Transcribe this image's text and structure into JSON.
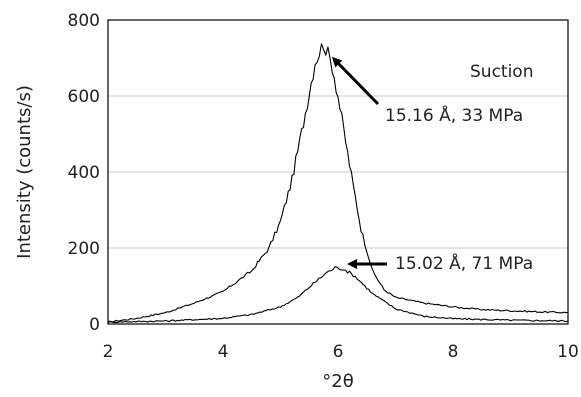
{
  "chart_data": {
    "type": "line",
    "xlabel": "°2θ",
    "ylabel": "Intensity (counts/s)",
    "xlim": [
      2,
      10
    ],
    "ylim": [
      0,
      800
    ],
    "xticks": [
      "2",
      "4",
      "6",
      "8",
      "10"
    ],
    "yticks": [
      "0",
      "200",
      "400",
      "600",
      "800"
    ],
    "grid": "horizontal",
    "legend": "Suction",
    "series": [
      {
        "color": "#000000",
        "x": [
          2,
          2.5,
          3,
          3.5,
          4,
          4.5,
          4.8,
          5.0,
          5.2,
          5.4,
          5.6,
          5.75,
          5.9,
          6.0,
          6.2,
          6.4,
          6.6,
          6.8,
          7.0,
          7.5,
          8,
          8.5,
          9,
          9.5,
          10
        ],
        "y": [
          5,
          15,
          30,
          55,
          85,
          140,
          200,
          270,
          380,
          530,
          690,
          740,
          680,
          600,
          420,
          250,
          140,
          90,
          70,
          55,
          45,
          38,
          35,
          32,
          30
        ]
      },
      {
        "color": "#000000",
        "x": [
          2,
          3,
          4,
          4.5,
          5.0,
          5.3,
          5.6,
          5.8,
          5.95,
          6.1,
          6.3,
          6.6,
          7.0,
          7.5,
          8,
          9,
          10
        ],
        "y": [
          5,
          8,
          15,
          25,
          45,
          70,
          110,
          135,
          148,
          145,
          125,
          80,
          40,
          20,
          14,
          10,
          8
        ]
      }
    ],
    "annotations": [
      {
        "text": "15.16 Å, 33 MPa",
        "x": 5.75,
        "y": 740
      },
      {
        "text": "15.02 Å, 71 MPa",
        "x": 6.15,
        "y": 148
      }
    ]
  }
}
